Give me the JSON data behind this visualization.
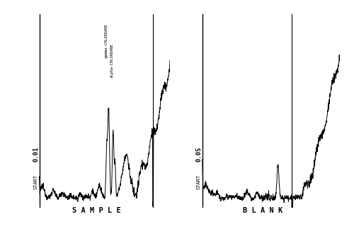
{
  "background_color": "#ffffff",
  "sample_label": "S A M P L E",
  "blank_label": "B L A N K",
  "start_label": "START",
  "scale_sample": "0.01",
  "scale_blank": "0.05",
  "gamma_label": "gamma-CHLORDANE",
  "alpha_label": "alpha-CHLORDANE",
  "line_color": "#000000",
  "fig_width": 5.0,
  "fig_height": 3.34,
  "dpi": 100
}
